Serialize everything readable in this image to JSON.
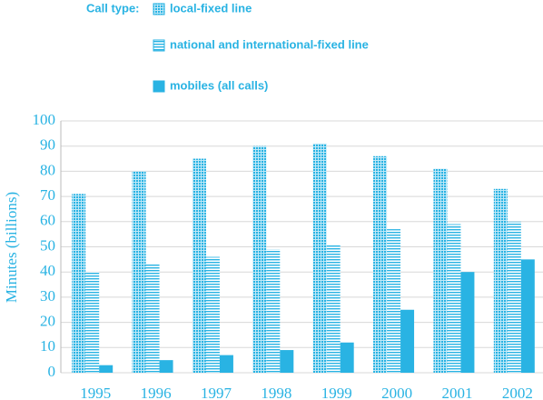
{
  "chart_data": {
    "type": "bar",
    "legend_title": "Call type:",
    "y_label": "Minutes (billions)",
    "categories": [
      "1995",
      "1996",
      "1997",
      "1998",
      "1999",
      "2000",
      "2001",
      "2002"
    ],
    "series": [
      {
        "name": "local-fixed line",
        "color": "#29b3e3",
        "pattern": "dots",
        "values": [
          71,
          80,
          85,
          90,
          91,
          86,
          81,
          73
        ]
      },
      {
        "name": "national and international-fixed line",
        "color": "#29b3e3",
        "pattern": "hlines",
        "values": [
          40,
          43,
          46,
          49,
          51,
          57,
          59,
          60
        ]
      },
      {
        "name": "mobiles (all calls)",
        "color": "#29b3e3",
        "pattern": "solid",
        "values": [
          3,
          5,
          7,
          9,
          12,
          25,
          40,
          45
        ]
      }
    ],
    "ylim": [
      0,
      100
    ],
    "yticks": [
      0,
      10,
      20,
      30,
      40,
      50,
      60,
      70,
      80,
      90,
      100
    ],
    "grid": true
  }
}
